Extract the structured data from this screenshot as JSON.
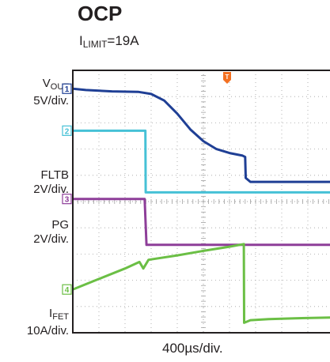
{
  "chart_data": {
    "type": "line",
    "title": "OCP",
    "subtitle_main": "I",
    "subtitle_sub": "LIMIT",
    "subtitle_value": "=19A",
    "timebase": "400µs/div.",
    "trigger_marker": "T",
    "x_unit": "div",
    "xlim": [
      0,
      10
    ],
    "y_unit": "div",
    "ylim": [
      0,
      10
    ],
    "grid": true,
    "colors": {
      "frame": "#231f20",
      "grid": "#a0a0a0",
      "vout": "#1f3f95",
      "fltb": "#46c1d6",
      "pg": "#8e3e99",
      "ifet": "#6bbf45",
      "trigger": "#f37021"
    },
    "series": [
      {
        "key": "vout",
        "channel": "1",
        "name_main": "V",
        "name_sub": "OUT",
        "scale": "5V/div.",
        "points": [
          [
            0,
            9.3
          ],
          [
            0.5,
            9.25
          ],
          [
            1.5,
            9.2
          ],
          [
            2.5,
            9.18
          ],
          [
            3.0,
            9.1
          ],
          [
            3.5,
            8.85
          ],
          [
            4.0,
            8.35
          ],
          [
            4.5,
            7.75
          ],
          [
            5.0,
            7.3
          ],
          [
            5.5,
            7.0
          ],
          [
            6.0,
            6.85
          ],
          [
            6.5,
            6.75
          ],
          [
            6.6,
            6.7
          ],
          [
            6.62,
            5.9
          ],
          [
            6.8,
            5.75
          ],
          [
            7.5,
            5.75
          ],
          [
            8.5,
            5.75
          ],
          [
            10,
            5.75
          ]
        ]
      },
      {
        "key": "fltb",
        "channel": "2",
        "name_main": "FLTB",
        "name_sub": "",
        "scale": "2V/div.",
        "points": [
          [
            0,
            7.7
          ],
          [
            2.78,
            7.7
          ],
          [
            2.79,
            5.35
          ],
          [
            5,
            5.35
          ],
          [
            10,
            5.35
          ]
        ]
      },
      {
        "key": "pg",
        "channel": "3",
        "name_main": "PG",
        "name_sub": "",
        "scale": "2V/div.",
        "points": [
          [
            0,
            5.1
          ],
          [
            2.75,
            5.1
          ],
          [
            2.78,
            4.4
          ],
          [
            2.82,
            3.35
          ],
          [
            5,
            3.35
          ],
          [
            10,
            3.35
          ]
        ]
      },
      {
        "key": "ifet",
        "channel": "4",
        "name_main": "I",
        "name_sub": "FET",
        "scale": "10A/div.",
        "points": [
          [
            0,
            1.65
          ],
          [
            1.0,
            2.05
          ],
          [
            2.0,
            2.45
          ],
          [
            2.55,
            2.7
          ],
          [
            2.7,
            2.45
          ],
          [
            2.9,
            2.78
          ],
          [
            4.0,
            2.95
          ],
          [
            5.0,
            3.12
          ],
          [
            6.0,
            3.28
          ],
          [
            6.55,
            3.38
          ],
          [
            6.56,
            0.38
          ],
          [
            6.8,
            0.48
          ],
          [
            7.5,
            0.52
          ],
          [
            8.5,
            0.55
          ],
          [
            10,
            0.58
          ]
        ]
      }
    ]
  }
}
